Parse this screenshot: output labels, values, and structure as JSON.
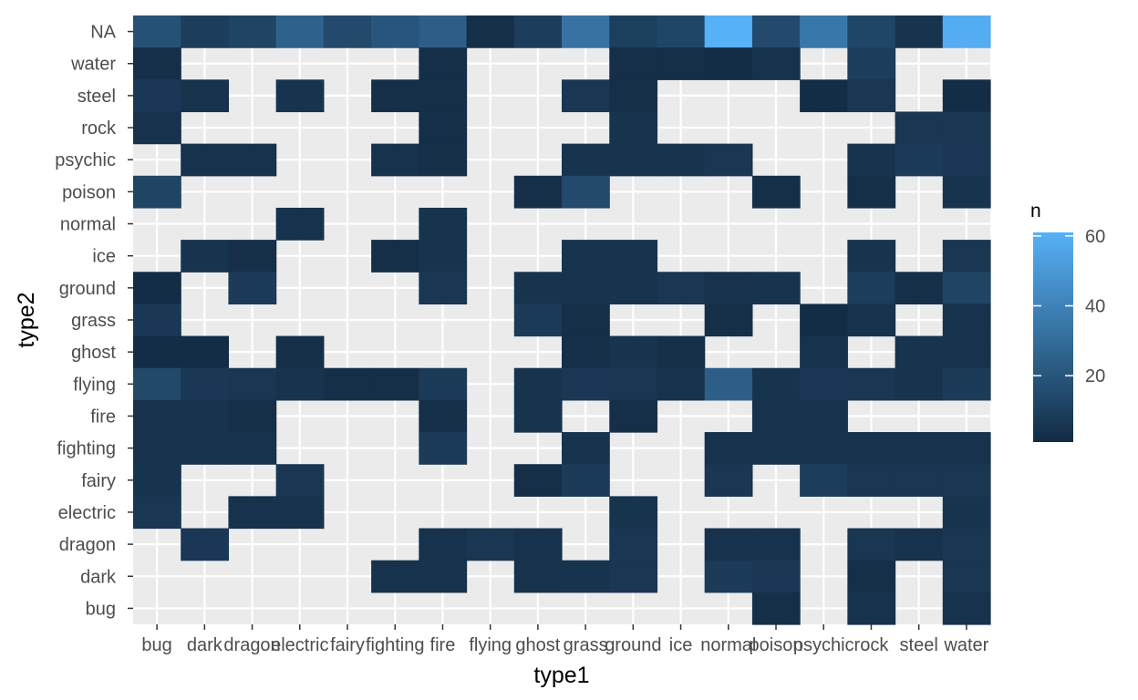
{
  "chart_data": {
    "type": "heatmap",
    "xlabel": "type1",
    "ylabel": "type2",
    "x_categories": [
      "bug",
      "dark",
      "dragon",
      "electric",
      "fairy",
      "fighting",
      "fire",
      "flying",
      "ghost",
      "grass",
      "ground",
      "ice",
      "normal",
      "poison",
      "psychic",
      "rock",
      "steel",
      "water"
    ],
    "y_categories": [
      "NA",
      "water",
      "steel",
      "rock",
      "psychic",
      "poison",
      "normal",
      "ice",
      "ground",
      "grass",
      "ghost",
      "flying",
      "fire",
      "fighting",
      "fairy",
      "electric",
      "dragon",
      "dark",
      "bug"
    ],
    "legend": {
      "title": "n",
      "ticks": [
        20,
        40,
        60
      ],
      "range": [
        1,
        61
      ],
      "low_color": "#132b43",
      "high_color": "#56b1f7"
    },
    "grid": true,
    "legend_position": "right",
    "cells": [
      {
        "x": "bug",
        "y": "NA",
        "n": 18
      },
      {
        "x": "dark",
        "y": "NA",
        "n": 9
      },
      {
        "x": "dragon",
        "y": "NA",
        "n": 12
      },
      {
        "x": "electric",
        "y": "NA",
        "n": 25
      },
      {
        "x": "fairy",
        "y": "NA",
        "n": 15
      },
      {
        "x": "fighting",
        "y": "NA",
        "n": 20
      },
      {
        "x": "fire",
        "y": "NA",
        "n": 24
      },
      {
        "x": "flying",
        "y": "NA",
        "n": 3
      },
      {
        "x": "ghost",
        "y": "NA",
        "n": 9
      },
      {
        "x": "grass",
        "y": "NA",
        "n": 33
      },
      {
        "x": "ground",
        "y": "NA",
        "n": 10
      },
      {
        "x": "ice",
        "y": "NA",
        "n": 13
      },
      {
        "x": "normal",
        "y": "NA",
        "n": 61
      },
      {
        "x": "poison",
        "y": "NA",
        "n": 15
      },
      {
        "x": "psychic",
        "y": "NA",
        "n": 35
      },
      {
        "x": "rock",
        "y": "NA",
        "n": 13
      },
      {
        "x": "steel",
        "y": "NA",
        "n": 5
      },
      {
        "x": "water",
        "y": "NA",
        "n": 59
      },
      {
        "x": "bug",
        "y": "water",
        "n": 3
      },
      {
        "x": "fire",
        "y": "water",
        "n": 3
      },
      {
        "x": "ground",
        "y": "water",
        "n": 3
      },
      {
        "x": "ice",
        "y": "water",
        "n": 3
      },
      {
        "x": "normal",
        "y": "water",
        "n": 2
      },
      {
        "x": "poison",
        "y": "water",
        "n": 4
      },
      {
        "x": "rock",
        "y": "water",
        "n": 9
      },
      {
        "x": "bug",
        "y": "steel",
        "n": 7
      },
      {
        "x": "dark",
        "y": "steel",
        "n": 4
      },
      {
        "x": "electric",
        "y": "steel",
        "n": 5
      },
      {
        "x": "fighting",
        "y": "steel",
        "n": 3
      },
      {
        "x": "fire",
        "y": "steel",
        "n": 3
      },
      {
        "x": "grass",
        "y": "steel",
        "n": 6
      },
      {
        "x": "ground",
        "y": "steel",
        "n": 3
      },
      {
        "x": "psychic",
        "y": "steel",
        "n": 2
      },
      {
        "x": "rock",
        "y": "steel",
        "n": 6
      },
      {
        "x": "water",
        "y": "steel",
        "n": 2
      },
      {
        "x": "bug",
        "y": "rock",
        "n": 4
      },
      {
        "x": "fire",
        "y": "rock",
        "n": 3
      },
      {
        "x": "ground",
        "y": "rock",
        "n": 5
      },
      {
        "x": "steel",
        "y": "rock",
        "n": 6
      },
      {
        "x": "water",
        "y": "rock",
        "n": 6
      },
      {
        "x": "dark",
        "y": "psychic",
        "n": 4
      },
      {
        "x": "dragon",
        "y": "psychic",
        "n": 4
      },
      {
        "x": "fighting",
        "y": "psychic",
        "n": 4
      },
      {
        "x": "fire",
        "y": "psychic",
        "n": 3
      },
      {
        "x": "grass",
        "y": "psychic",
        "n": 5
      },
      {
        "x": "ground",
        "y": "psychic",
        "n": 5
      },
      {
        "x": "ice",
        "y": "psychic",
        "n": 5
      },
      {
        "x": "normal",
        "y": "psychic",
        "n": 6
      },
      {
        "x": "rock",
        "y": "psychic",
        "n": 5
      },
      {
        "x": "steel",
        "y": "psychic",
        "n": 8
      },
      {
        "x": "water",
        "y": "psychic",
        "n": 7
      },
      {
        "x": "bug",
        "y": "poison",
        "n": 12
      },
      {
        "x": "ghost",
        "y": "poison",
        "n": 3
      },
      {
        "x": "grass",
        "y": "poison",
        "n": 15
      },
      {
        "x": "poison",
        "y": "poison",
        "n": 3
      },
      {
        "x": "rock",
        "y": "poison",
        "n": 3
      },
      {
        "x": "water",
        "y": "poison",
        "n": 5
      },
      {
        "x": "electric",
        "y": "normal",
        "n": 4
      },
      {
        "x": "fire",
        "y": "normal",
        "n": 5
      },
      {
        "x": "dark",
        "y": "ice",
        "n": 5
      },
      {
        "x": "dragon",
        "y": "ice",
        "n": 3
      },
      {
        "x": "fighting",
        "y": "ice",
        "n": 3
      },
      {
        "x": "fire",
        "y": "ice",
        "n": 5
      },
      {
        "x": "grass",
        "y": "ice",
        "n": 5
      },
      {
        "x": "ground",
        "y": "ice",
        "n": 5
      },
      {
        "x": "rock",
        "y": "ice",
        "n": 5
      },
      {
        "x": "water",
        "y": "ice",
        "n": 6
      },
      {
        "x": "bug",
        "y": "ground",
        "n": 2
      },
      {
        "x": "dragon",
        "y": "ground",
        "n": 8
      },
      {
        "x": "fire",
        "y": "ground",
        "n": 6
      },
      {
        "x": "ghost",
        "y": "ground",
        "n": 5
      },
      {
        "x": "grass",
        "y": "ground",
        "n": 4
      },
      {
        "x": "ground",
        "y": "ground",
        "n": 5
      },
      {
        "x": "ice",
        "y": "ground",
        "n": 6
      },
      {
        "x": "normal",
        "y": "ground",
        "n": 4
      },
      {
        "x": "poison",
        "y": "ground",
        "n": 5
      },
      {
        "x": "rock",
        "y": "ground",
        "n": 9
      },
      {
        "x": "steel",
        "y": "ground",
        "n": 3
      },
      {
        "x": "water",
        "y": "ground",
        "n": 12
      },
      {
        "x": "bug",
        "y": "grass",
        "n": 7
      },
      {
        "x": "ghost",
        "y": "grass",
        "n": 8
      },
      {
        "x": "grass",
        "y": "grass",
        "n": 3
      },
      {
        "x": "normal",
        "y": "grass",
        "n": 3
      },
      {
        "x": "psychic",
        "y": "grass",
        "n": 2
      },
      {
        "x": "rock",
        "y": "grass",
        "n": 4
      },
      {
        "x": "water",
        "y": "grass",
        "n": 4
      },
      {
        "x": "bug",
        "y": "ghost",
        "n": 2
      },
      {
        "x": "dark",
        "y": "ghost",
        "n": 2
      },
      {
        "x": "electric",
        "y": "ghost",
        "n": 3
      },
      {
        "x": "grass",
        "y": "ghost",
        "n": 3
      },
      {
        "x": "ground",
        "y": "ghost",
        "n": 5
      },
      {
        "x": "ice",
        "y": "ghost",
        "n": 3
      },
      {
        "x": "psychic",
        "y": "ghost",
        "n": 4
      },
      {
        "x": "steel",
        "y": "ghost",
        "n": 5
      },
      {
        "x": "water",
        "y": "ghost",
        "n": 4
      },
      {
        "x": "bug",
        "y": "flying",
        "n": 14
      },
      {
        "x": "dark",
        "y": "flying",
        "n": 7
      },
      {
        "x": "dragon",
        "y": "flying",
        "n": 6
      },
      {
        "x": "electric",
        "y": "flying",
        "n": 5
      },
      {
        "x": "fairy",
        "y": "flying",
        "n": 3
      },
      {
        "x": "fighting",
        "y": "flying",
        "n": 3
      },
      {
        "x": "fire",
        "y": "flying",
        "n": 8
      },
      {
        "x": "ghost",
        "y": "flying",
        "n": 5
      },
      {
        "x": "grass",
        "y": "flying",
        "n": 7
      },
      {
        "x": "ground",
        "y": "flying",
        "n": 6
      },
      {
        "x": "ice",
        "y": "flying",
        "n": 4
      },
      {
        "x": "normal",
        "y": "flying",
        "n": 24
      },
      {
        "x": "poison",
        "y": "flying",
        "n": 5
      },
      {
        "x": "psychic",
        "y": "flying",
        "n": 7
      },
      {
        "x": "rock",
        "y": "flying",
        "n": 6
      },
      {
        "x": "steel",
        "y": "flying",
        "n": 5
      },
      {
        "x": "water",
        "y": "flying",
        "n": 8
      },
      {
        "x": "bug",
        "y": "fire",
        "n": 4
      },
      {
        "x": "dark",
        "y": "fire",
        "n": 4
      },
      {
        "x": "dragon",
        "y": "fire",
        "n": 3
      },
      {
        "x": "fire",
        "y": "fire",
        "n": 3
      },
      {
        "x": "ghost",
        "y": "fire",
        "n": 5
      },
      {
        "x": "ground",
        "y": "fire",
        "n": 3
      },
      {
        "x": "poison",
        "y": "fire",
        "n": 4
      },
      {
        "x": "psychic",
        "y": "fire",
        "n": 4
      },
      {
        "x": "bug",
        "y": "fighting",
        "n": 4
      },
      {
        "x": "dark",
        "y": "fighting",
        "n": 4
      },
      {
        "x": "dragon",
        "y": "fighting",
        "n": 4
      },
      {
        "x": "fire",
        "y": "fighting",
        "n": 8
      },
      {
        "x": "grass",
        "y": "fighting",
        "n": 5
      },
      {
        "x": "normal",
        "y": "fighting",
        "n": 4
      },
      {
        "x": "poison",
        "y": "fighting",
        "n": 4
      },
      {
        "x": "psychic",
        "y": "fighting",
        "n": 4
      },
      {
        "x": "rock",
        "y": "fighting",
        "n": 4
      },
      {
        "x": "steel",
        "y": "fighting",
        "n": 4
      },
      {
        "x": "water",
        "y": "fighting",
        "n": 4
      },
      {
        "x": "bug",
        "y": "fairy",
        "n": 5
      },
      {
        "x": "electric",
        "y": "fairy",
        "n": 6
      },
      {
        "x": "ghost",
        "y": "fairy",
        "n": 3
      },
      {
        "x": "grass",
        "y": "fairy",
        "n": 8
      },
      {
        "x": "normal",
        "y": "fairy",
        "n": 6
      },
      {
        "x": "psychic",
        "y": "fairy",
        "n": 9
      },
      {
        "x": "rock",
        "y": "fairy",
        "n": 6
      },
      {
        "x": "steel",
        "y": "fairy",
        "n": 6
      },
      {
        "x": "water",
        "y": "fairy",
        "n": 6
      },
      {
        "x": "bug",
        "y": "electric",
        "n": 6
      },
      {
        "x": "dragon",
        "y": "electric",
        "n": 4
      },
      {
        "x": "electric",
        "y": "electric",
        "n": 4
      },
      {
        "x": "ground",
        "y": "electric",
        "n": 5
      },
      {
        "x": "water",
        "y": "electric",
        "n": 5
      },
      {
        "x": "dark",
        "y": "dragon",
        "n": 7
      },
      {
        "x": "fire",
        "y": "dragon",
        "n": 4
      },
      {
        "x": "flying",
        "y": "dragon",
        "n": 6
      },
      {
        "x": "ghost",
        "y": "dragon",
        "n": 4
      },
      {
        "x": "ground",
        "y": "dragon",
        "n": 6
      },
      {
        "x": "normal",
        "y": "dragon",
        "n": 4
      },
      {
        "x": "poison",
        "y": "dragon",
        "n": 4
      },
      {
        "x": "rock",
        "y": "dragon",
        "n": 6
      },
      {
        "x": "steel",
        "y": "dragon",
        "n": 4
      },
      {
        "x": "water",
        "y": "dragon",
        "n": 6
      },
      {
        "x": "fighting",
        "y": "dark",
        "n": 4
      },
      {
        "x": "fire",
        "y": "dark",
        "n": 4
      },
      {
        "x": "ghost",
        "y": "dark",
        "n": 4
      },
      {
        "x": "grass",
        "y": "dark",
        "n": 5
      },
      {
        "x": "ground",
        "y": "dark",
        "n": 6
      },
      {
        "x": "normal",
        "y": "dark",
        "n": 8
      },
      {
        "x": "poison",
        "y": "dark",
        "n": 7
      },
      {
        "x": "rock",
        "y": "dark",
        "n": 3
      },
      {
        "x": "water",
        "y": "dark",
        "n": 6
      },
      {
        "x": "poison",
        "y": "bug",
        "n": 3
      },
      {
        "x": "rock",
        "y": "bug",
        "n": 4
      },
      {
        "x": "water",
        "y": "bug",
        "n": 4
      }
    ]
  }
}
